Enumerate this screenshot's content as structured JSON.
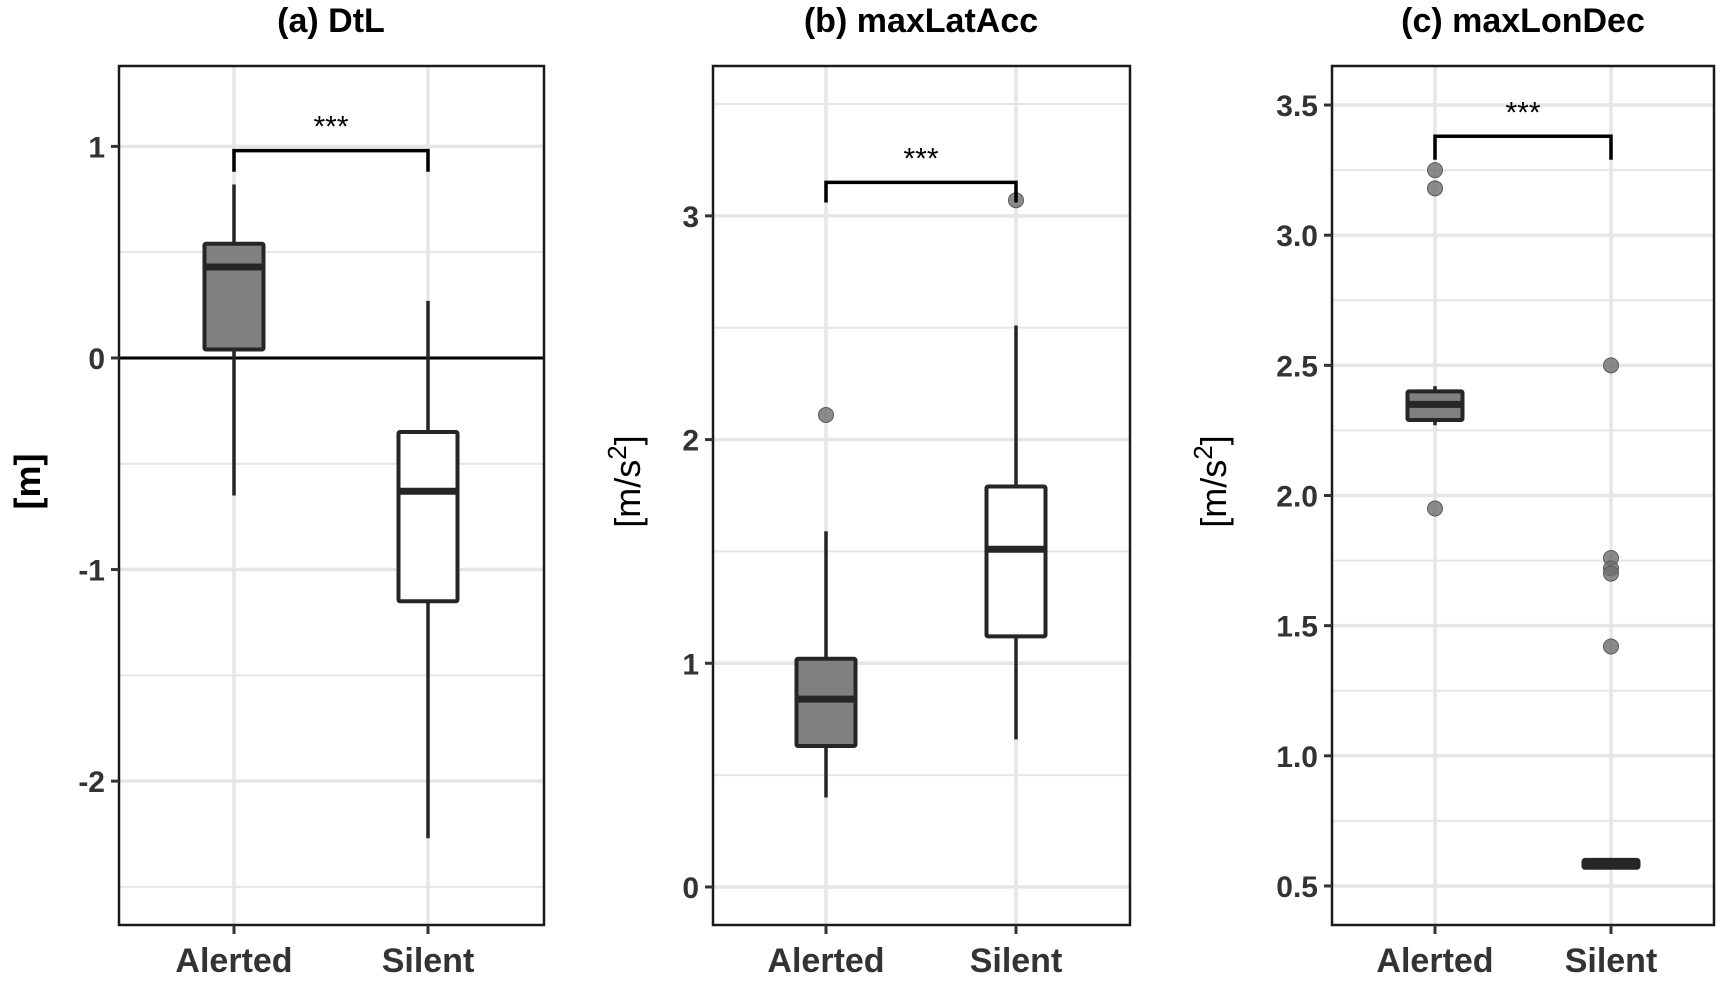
{
  "chart_data": [
    {
      "type": "boxplot",
      "panel_id": "a",
      "title": "(a) DtL",
      "xlabel": "",
      "ylabel": "[m]",
      "ylabel_superscript": "",
      "ylabel_bold": true,
      "categories": [
        "Alerted",
        "Silent"
      ],
      "ylim": [
        -2.68,
        1.38
      ],
      "yticks": [
        -2,
        -1,
        0,
        1
      ],
      "ytick_labels": [
        "-2",
        "-1",
        "0",
        "1"
      ],
      "minor_gridlines": [
        -2.5,
        -1.5,
        -0.5,
        0.5
      ],
      "grid": true,
      "reference_line": 0,
      "boxes": [
        {
          "category": "Alerted",
          "fill": "#808080",
          "whisker_low": -0.65,
          "q1": 0.04,
          "median": 0.43,
          "q3": 0.54,
          "whisker_high": 0.82,
          "outliers": []
        },
        {
          "category": "Silent",
          "fill": "#ffffff",
          "whisker_low": -2.27,
          "q1": -1.15,
          "median": -0.63,
          "q3": -0.35,
          "whisker_high": 0.27,
          "outliers": []
        }
      ],
      "significance": {
        "label": "***",
        "y": 0.98,
        "drop": 0.1
      }
    },
    {
      "type": "boxplot",
      "panel_id": "b",
      "title": "(b) maxLatAcc",
      "xlabel": "",
      "ylabel": "[m/s",
      "ylabel_superscript": "2",
      "ylabel_suffix": "]",
      "ylabel_bold": false,
      "categories": [
        "Alerted",
        "Silent"
      ],
      "ylim": [
        -0.17,
        3.67
      ],
      "yticks": [
        0,
        1,
        2,
        3
      ],
      "ytick_labels": [
        "0",
        "1",
        "2",
        "3"
      ],
      "minor_gridlines": [
        0.5,
        1.5,
        2.5,
        3.5
      ],
      "grid": true,
      "reference_line": null,
      "boxes": [
        {
          "category": "Alerted",
          "fill": "#808080",
          "whisker_low": 0.4,
          "q1": 0.63,
          "median": 0.84,
          "q3": 1.02,
          "whisker_high": 1.59,
          "outliers": [
            2.11
          ]
        },
        {
          "category": "Silent",
          "fill": "#ffffff",
          "whisker_low": 0.66,
          "q1": 1.12,
          "median": 1.51,
          "q3": 1.79,
          "whisker_high": 2.51,
          "outliers": [
            3.07
          ]
        }
      ],
      "significance": {
        "label": "***",
        "y": 3.15,
        "drop": 0.09
      }
    },
    {
      "type": "boxplot",
      "panel_id": "c",
      "title": "(c) maxLonDec",
      "xlabel": "",
      "ylabel": "[m/s",
      "ylabel_superscript": "2",
      "ylabel_suffix": "]",
      "ylabel_bold": false,
      "categories": [
        "Alerted",
        "Silent"
      ],
      "ylim": [
        0.35,
        3.65
      ],
      "yticks": [
        0.5,
        1.0,
        1.5,
        2.0,
        2.5,
        3.0,
        3.5
      ],
      "ytick_labels": [
        "0.5",
        "1.0",
        "1.5",
        "2.0",
        "2.5",
        "3.0",
        "3.5"
      ],
      "minor_gridlines": [
        0.75,
        1.25,
        1.75,
        2.25,
        2.75,
        3.25
      ],
      "grid": true,
      "reference_line": null,
      "boxes": [
        {
          "category": "Alerted",
          "fill": "#808080",
          "whisker_low": 2.27,
          "q1": 2.29,
          "median": 2.35,
          "q3": 2.4,
          "whisker_high": 2.42,
          "outliers": [
            3.25,
            3.18,
            1.95
          ]
        },
        {
          "category": "Silent",
          "fill": "#ffffff",
          "whisker_low": 0.57,
          "q1": 0.57,
          "median": 0.585,
          "q3": 0.6,
          "whisker_high": 0.6,
          "outliers": [
            2.5,
            1.76,
            1.72,
            1.7,
            1.42
          ]
        }
      ],
      "significance": {
        "label": "***",
        "y": 3.38,
        "drop": 0.09
      }
    }
  ],
  "colors": {
    "alerted_fill": "#808080",
    "silent_fill": "#ffffff",
    "box_stroke": "#262626",
    "outlier": "#6e6e6e",
    "grid": "#e6e6e6",
    "axis_text": "#333333"
  }
}
